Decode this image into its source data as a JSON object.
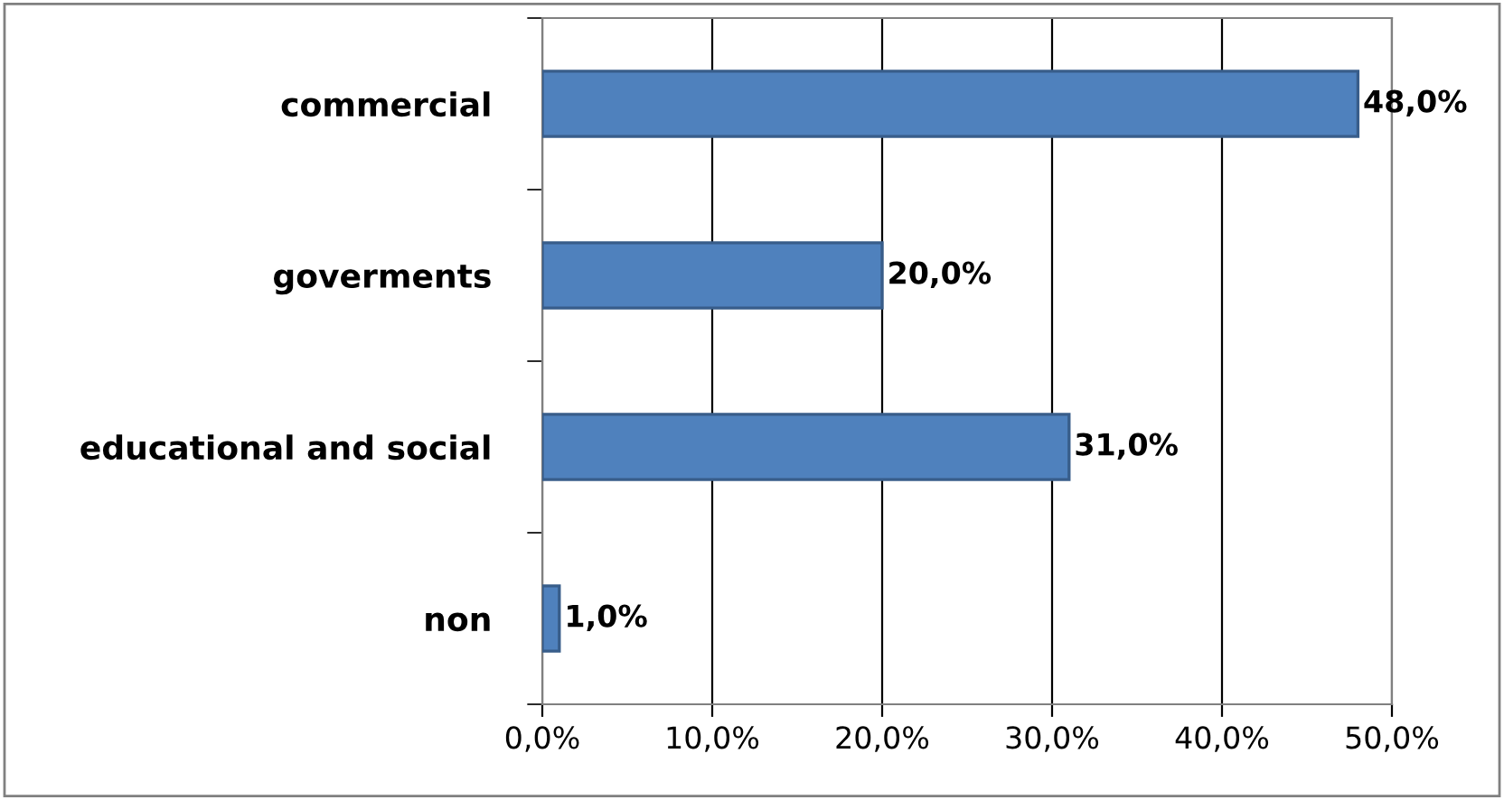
{
  "chart_data": {
    "type": "bar",
    "orientation": "horizontal",
    "categories": [
      "commercial",
      "goverments",
      "educational and social",
      "non"
    ],
    "values": [
      48,
      20,
      31,
      1
    ],
    "value_labels": [
      "48,0%",
      "20,0%",
      "31,0%",
      "1,0%"
    ],
    "color": "#4f81bd",
    "xlim": [
      0,
      50
    ],
    "xticks": [
      {
        "value": 0,
        "label": "0,0%"
      },
      {
        "value": 10,
        "label": "10,0%"
      },
      {
        "value": 20,
        "label": "20,0%"
      },
      {
        "value": 30,
        "label": "30,0%"
      },
      {
        "value": 40,
        "label": "40,0%"
      },
      {
        "value": 50,
        "label": "50,0%"
      }
    ],
    "grid": "x"
  }
}
